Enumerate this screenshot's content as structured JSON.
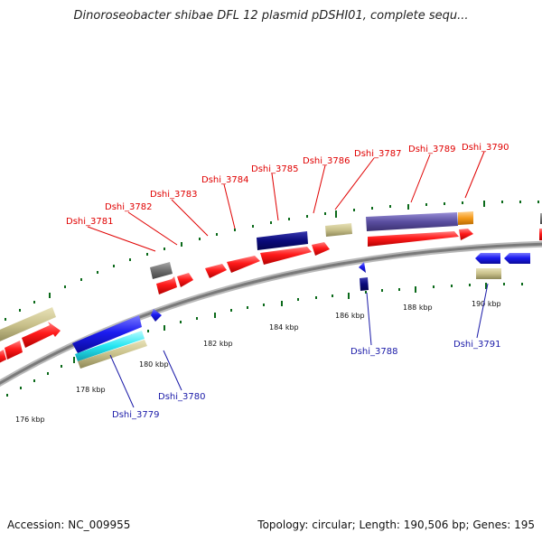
{
  "title": "Dinoroseobacter shibae DFL 12 plasmid pDSHI01, complete sequ...",
  "footer": {
    "accession": "Accession: NC_009955",
    "topology": "Topology: circular; Length: 190,506 bp; Genes: 195"
  },
  "ticks": [
    "176 kbp",
    "178 kbp",
    "180 kbp",
    "182 kbp",
    "184 kbp",
    "186 kbp",
    "188 kbp",
    "190 kbp"
  ],
  "gene_labels_top": [
    "Dshi_3781",
    "Dshi_3782",
    "Dshi_3783",
    "Dshi_3784",
    "Dshi_3785",
    "Dshi_3786",
    "Dshi_3787",
    "Dshi_3789",
    "Dshi_3790"
  ],
  "gene_labels_bottom": [
    "Dshi_3779",
    "Dshi_3780",
    "Dshi_3788",
    "Dshi_3791"
  ],
  "colors": {
    "forward_gene": "#ff1a1a",
    "reverse_gene": "#1c1cf0",
    "navy_gene": "#0a0a7a",
    "purple_band": "#5a4ea0",
    "khaki_band": "#c8c08a",
    "gray_band": "#6e6e6e",
    "cyan_band": "#26e6f2",
    "orange_band": "#f59a1a",
    "backbone": "#808080",
    "tick_green": "#0b6a1a",
    "label_top": "#e00000",
    "label_bottom": "#1a1aa8"
  }
}
